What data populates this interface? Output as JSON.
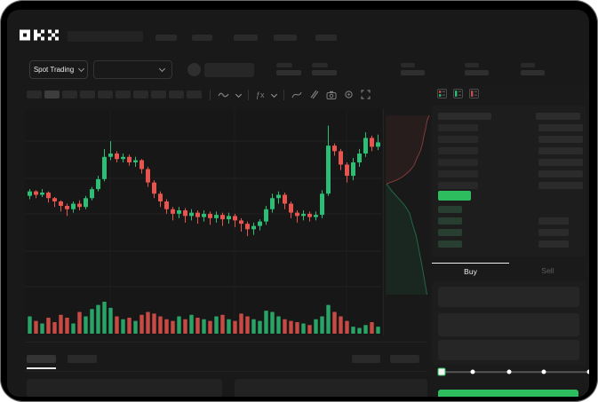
{
  "app": {
    "brand": "OKX"
  },
  "colors": {
    "candle_green": "#2dbd75",
    "candle_red": "#e8544e",
    "accent_green": "#2ebd5e",
    "grid": "rgba(255,255,255,0.045)"
  },
  "market_bar": {
    "spot_trading_label": "Spot Trading"
  },
  "trade_panel": {
    "buy_tab_label": "Buy",
    "sell_tab_label": "Sell",
    "input_count": 3,
    "slider": {
      "percentages": [
        0,
        21,
        46,
        69,
        100
      ],
      "active_index": 0
    },
    "submit_label": ""
  },
  "orderbook": {
    "view_icons": [
      "combined-book-icon",
      "bids-only-icon",
      "asks-only-icon"
    ],
    "ask_row_count": 6,
    "bid_row_count": 4,
    "bid_right_bar_count": 3
  },
  "chart_data": {
    "type": "candlestick",
    "ylim": [
      0,
      105
    ],
    "grid": true,
    "candles_ochl_note": "values as [open, close, low, high] on 0-105 relative scale",
    "candles": [
      [
        40,
        44,
        37,
        46
      ],
      [
        44,
        41,
        38,
        45
      ],
      [
        41,
        43,
        39,
        46
      ],
      [
        43,
        38,
        34,
        44
      ],
      [
        38,
        35,
        30,
        39
      ],
      [
        35,
        31,
        26,
        36
      ],
      [
        31,
        28,
        22,
        33
      ],
      [
        28,
        33,
        25,
        35
      ],
      [
        33,
        30,
        27,
        36
      ],
      [
        30,
        38,
        28,
        40
      ],
      [
        38,
        46,
        36,
        48
      ],
      [
        46,
        55,
        44,
        58
      ],
      [
        55,
        75,
        53,
        82
      ],
      [
        75,
        78,
        72,
        89
      ],
      [
        78,
        73,
        70,
        80
      ],
      [
        73,
        75,
        70,
        78
      ],
      [
        75,
        70,
        67,
        77
      ],
      [
        70,
        72,
        66,
        75
      ],
      [
        72,
        64,
        60,
        73
      ],
      [
        64,
        52,
        48,
        66
      ],
      [
        52,
        42,
        38,
        54
      ],
      [
        42,
        35,
        30,
        44
      ],
      [
        35,
        28,
        24,
        37
      ],
      [
        28,
        24,
        18,
        30
      ],
      [
        24,
        27,
        20,
        30
      ],
      [
        27,
        22,
        16,
        29
      ],
      [
        22,
        25,
        18,
        28
      ],
      [
        25,
        21,
        15,
        27
      ],
      [
        21,
        24,
        17,
        27
      ],
      [
        24,
        20,
        14,
        26
      ],
      [
        20,
        23,
        16,
        26
      ],
      [
        23,
        19,
        13,
        25
      ],
      [
        19,
        22,
        15,
        25
      ],
      [
        22,
        18,
        12,
        24
      ],
      [
        18,
        15,
        8,
        20
      ],
      [
        15,
        10,
        4,
        17
      ],
      [
        10,
        13,
        5,
        16
      ],
      [
        13,
        17,
        9,
        19
      ],
      [
        17,
        28,
        14,
        31
      ],
      [
        28,
        38,
        25,
        42
      ],
      [
        38,
        41,
        33,
        44
      ],
      [
        41,
        33,
        28,
        43
      ],
      [
        33,
        25,
        20,
        35
      ],
      [
        25,
        22,
        16,
        27
      ],
      [
        22,
        24,
        18,
        27
      ],
      [
        24,
        21,
        17,
        26
      ],
      [
        21,
        23,
        18,
        26
      ],
      [
        23,
        42,
        20,
        45
      ],
      [
        42,
        85,
        40,
        103
      ],
      [
        85,
        80,
        76,
        87
      ],
      [
        80,
        68,
        63,
        82
      ],
      [
        68,
        58,
        52,
        70
      ],
      [
        58,
        70,
        54,
        74
      ],
      [
        70,
        78,
        66,
        82
      ],
      [
        78,
        92,
        75,
        97
      ],
      [
        92,
        84,
        80,
        94
      ],
      [
        84,
        88,
        81,
        95
      ]
    ],
    "volume": [
      54,
      40,
      32,
      50,
      36,
      59,
      50,
      32,
      68,
      54,
      77,
      90,
      100,
      81,
      54,
      45,
      50,
      40,
      59,
      68,
      63,
      54,
      45,
      40,
      54,
      45,
      59,
      50,
      45,
      40,
      54,
      59,
      45,
      40,
      63,
      54,
      45,
      40,
      72,
      68,
      54,
      45,
      40,
      36,
      32,
      27,
      45,
      54,
      90,
      68,
      54,
      40,
      22,
      18,
      27,
      36,
      22
    ],
    "depth": {
      "asks": [
        [
          1,
          0.03
        ],
        [
          0.95,
          0.06
        ],
        [
          0.92,
          0.1
        ],
        [
          0.88,
          0.14
        ],
        [
          0.85,
          0.18
        ],
        [
          0.8,
          0.22
        ],
        [
          0.72,
          0.26
        ],
        [
          0.65,
          0.3
        ],
        [
          0.55,
          0.33
        ],
        [
          0.4,
          0.36
        ],
        [
          0.25,
          0.38
        ],
        [
          0.02,
          0.4
        ]
      ],
      "bids": [
        [
          0.02,
          0.4
        ],
        [
          0.15,
          0.44
        ],
        [
          0.3,
          0.48
        ],
        [
          0.45,
          0.52
        ],
        [
          0.55,
          0.56
        ],
        [
          0.62,
          0.62
        ],
        [
          0.7,
          0.68
        ],
        [
          0.75,
          0.74
        ],
        [
          0.8,
          0.8
        ],
        [
          0.85,
          0.86
        ],
        [
          0.9,
          0.93
        ],
        [
          0.95,
          1.0
        ]
      ]
    }
  }
}
